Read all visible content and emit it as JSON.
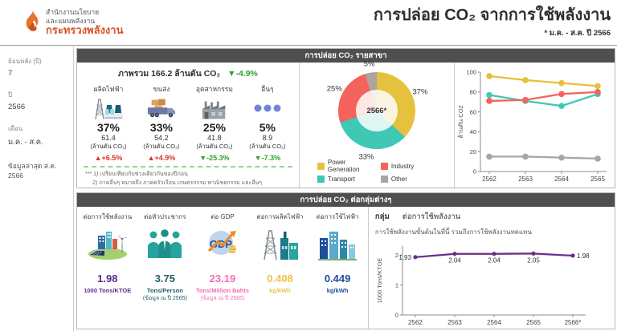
{
  "header": {
    "logo_line1": "สำนักงานนโยบาย",
    "logo_line2": "และแผนพลังงาน",
    "logo_line3": "กระทรวงพลังงาน",
    "title": "การปล่อย CO₂ จากการใช้พลังงาน",
    "subtitle": "* ม.ค. - ส.ค. ปี 2566"
  },
  "sidebar": {
    "filters": [
      {
        "label": "ย้อนหลัง (ปี)",
        "value": "7"
      },
      {
        "label": "ปี",
        "value": "2566"
      },
      {
        "label": "เดือน",
        "value": "ม.ค. - ส.ค."
      }
    ],
    "last_updated": "ข้อมูลล่าสุด ส.ค. 2566"
  },
  "sector_panel": {
    "header": "การปล่อย CO₂ รายสาขา",
    "overview": {
      "title_prefix": "ภาพรวม",
      "total_value": "166.2",
      "total_unit": "ล้านตัน CO₂",
      "total_trend": "▼-4.9%",
      "sectors": [
        {
          "name": "ผลิตไฟฟ้า",
          "icon": "power-plant-icon",
          "percent": "37%",
          "value": "61.4",
          "unit": "(ล้านตัน CO₂)",
          "trend": "▲+6.5%",
          "trend_dir": "up"
        },
        {
          "name": "ขนส่ง",
          "icon": "truck-icon",
          "percent": "33%",
          "value": "54.2",
          "unit": "(ล้านตัน CO₂)",
          "trend": "▲+4.9%",
          "trend_dir": "up"
        },
        {
          "name": "อุตสาหกรรม",
          "icon": "factory-icon",
          "percent": "25%",
          "value": "41.8",
          "unit": "(ล้านตัน CO₂)",
          "trend": "▼-25.3%",
          "trend_dir": "down"
        },
        {
          "name": "อื่นๆ",
          "icon": "others-dots-icon",
          "percent": "5%",
          "value": "8.9",
          "unit": "(ล้านตัน CO₂)",
          "trend": "▼-7.3%",
          "trend_dir": "down"
        }
      ],
      "footnote1": "*** 1) เปรียบเทียบกับช่วงเดียวกันของปีก่อน",
      "footnote2": "2) ภาคอื่นๆ หมายถึง ภาคครัวเรือน เกษตรกรรม พาณิชยกรรม และอื่นๆ"
    }
  },
  "ratio_panel": {
    "header": "การปล่อย CO₂ ต่อกลุ่มต่างๆ",
    "ratios": [
      {
        "label": "ต่อการใช้พลังงาน",
        "icon": "energy-city-icon",
        "value": "1.98",
        "unit": "1000 Tons/KTOE",
        "note": "",
        "color": "#5B2B8A"
      },
      {
        "label": "ต่อหัวประชากร",
        "icon": "population-icon",
        "value": "3.75",
        "unit": "Tons/Person",
        "note": "(ข้อมูล ณ ปี 2565)",
        "color": "#235E66"
      },
      {
        "label": "ต่อ GDP",
        "icon": "gdp-icon",
        "value": "23.19",
        "unit": "Tons/Million Bahts",
        "note": "(ข้อมูล ณ ปี 2565)",
        "color": "#F56EB3"
      },
      {
        "label": "ต่อการผลิตไฟฟ้า",
        "icon": "power-generation-icon",
        "value": "0.408",
        "unit": "kg/kWh",
        "note": "",
        "color": "#EFC24D"
      },
      {
        "label": "ต่อการใช้ไฟฟ้า",
        "icon": "city-buildings-icon",
        "value": "0.449",
        "unit": "kg/kWh",
        "note": "",
        "color": "#1F4D99"
      }
    ],
    "selector": {
      "label": "กลุ่ม",
      "value": "ต่อการใช้พลังงาน"
    },
    "chart_note": "การใช้พลังงานขั้นต้นในที่นี้ รวมถึงการใช้พลังงานทดแทน"
  },
  "chart_data": [
    {
      "type": "pie",
      "donut": true,
      "center_label": "2566*",
      "slices": [
        {
          "label": "Power Generation",
          "value": 37,
          "color": "#E5C13D"
        },
        {
          "label": "Transport",
          "value": 33,
          "color": "#3FC8B4"
        },
        {
          "label": "Industry",
          "value": 25,
          "color": "#F4635C"
        },
        {
          "label": "Other",
          "value": 5,
          "color": "#ACA49D"
        }
      ],
      "legend": [
        {
          "label": "Power Generation",
          "color": "#E5C13D"
        },
        {
          "label": "Industry",
          "color": "#F4635C"
        },
        {
          "label": "Transport",
          "color": "#3FC8B4"
        },
        {
          "label": "Other",
          "color": "#ACA49D"
        }
      ]
    },
    {
      "type": "line",
      "x": [
        "2562",
        "2563",
        "2564",
        "2565"
      ],
      "ylabel": "ล้านตัน CO2",
      "ylim": [
        0,
        100
      ],
      "yticks": [
        0,
        20,
        40,
        60,
        80,
        100
      ],
      "series": [
        {
          "name": "Power Generation",
          "color": "#E5C13D",
          "values": [
            96,
            92,
            89,
            86
          ]
        },
        {
          "name": "Transport",
          "color": "#3FC8B4",
          "values": [
            77,
            71,
            66,
            78
          ]
        },
        {
          "name": "Industry",
          "color": "#F4635C",
          "values": [
            71,
            72,
            78,
            80
          ]
        },
        {
          "name": "Other",
          "color": "#ACA49D",
          "values": [
            15,
            15,
            14,
            13
          ]
        }
      ]
    },
    {
      "type": "line",
      "title": "ต่อการใช้พลังงาน",
      "x": [
        "2562",
        "2563",
        "2564",
        "2565",
        "2566*"
      ],
      "ylabel": "1000 Tons/KTOE",
      "ylim": [
        0,
        2.3
      ],
      "yticks": [
        0,
        1,
        2
      ],
      "series": [
        {
          "name": "ต่อการใช้พลังงาน",
          "color": "#6B2D86",
          "values": [
            1.93,
            2.04,
            2.04,
            2.05,
            1.98
          ]
        }
      ],
      "point_labels": [
        "1.93",
        "2.04",
        "2.04",
        "2.05",
        "1.98"
      ]
    }
  ]
}
